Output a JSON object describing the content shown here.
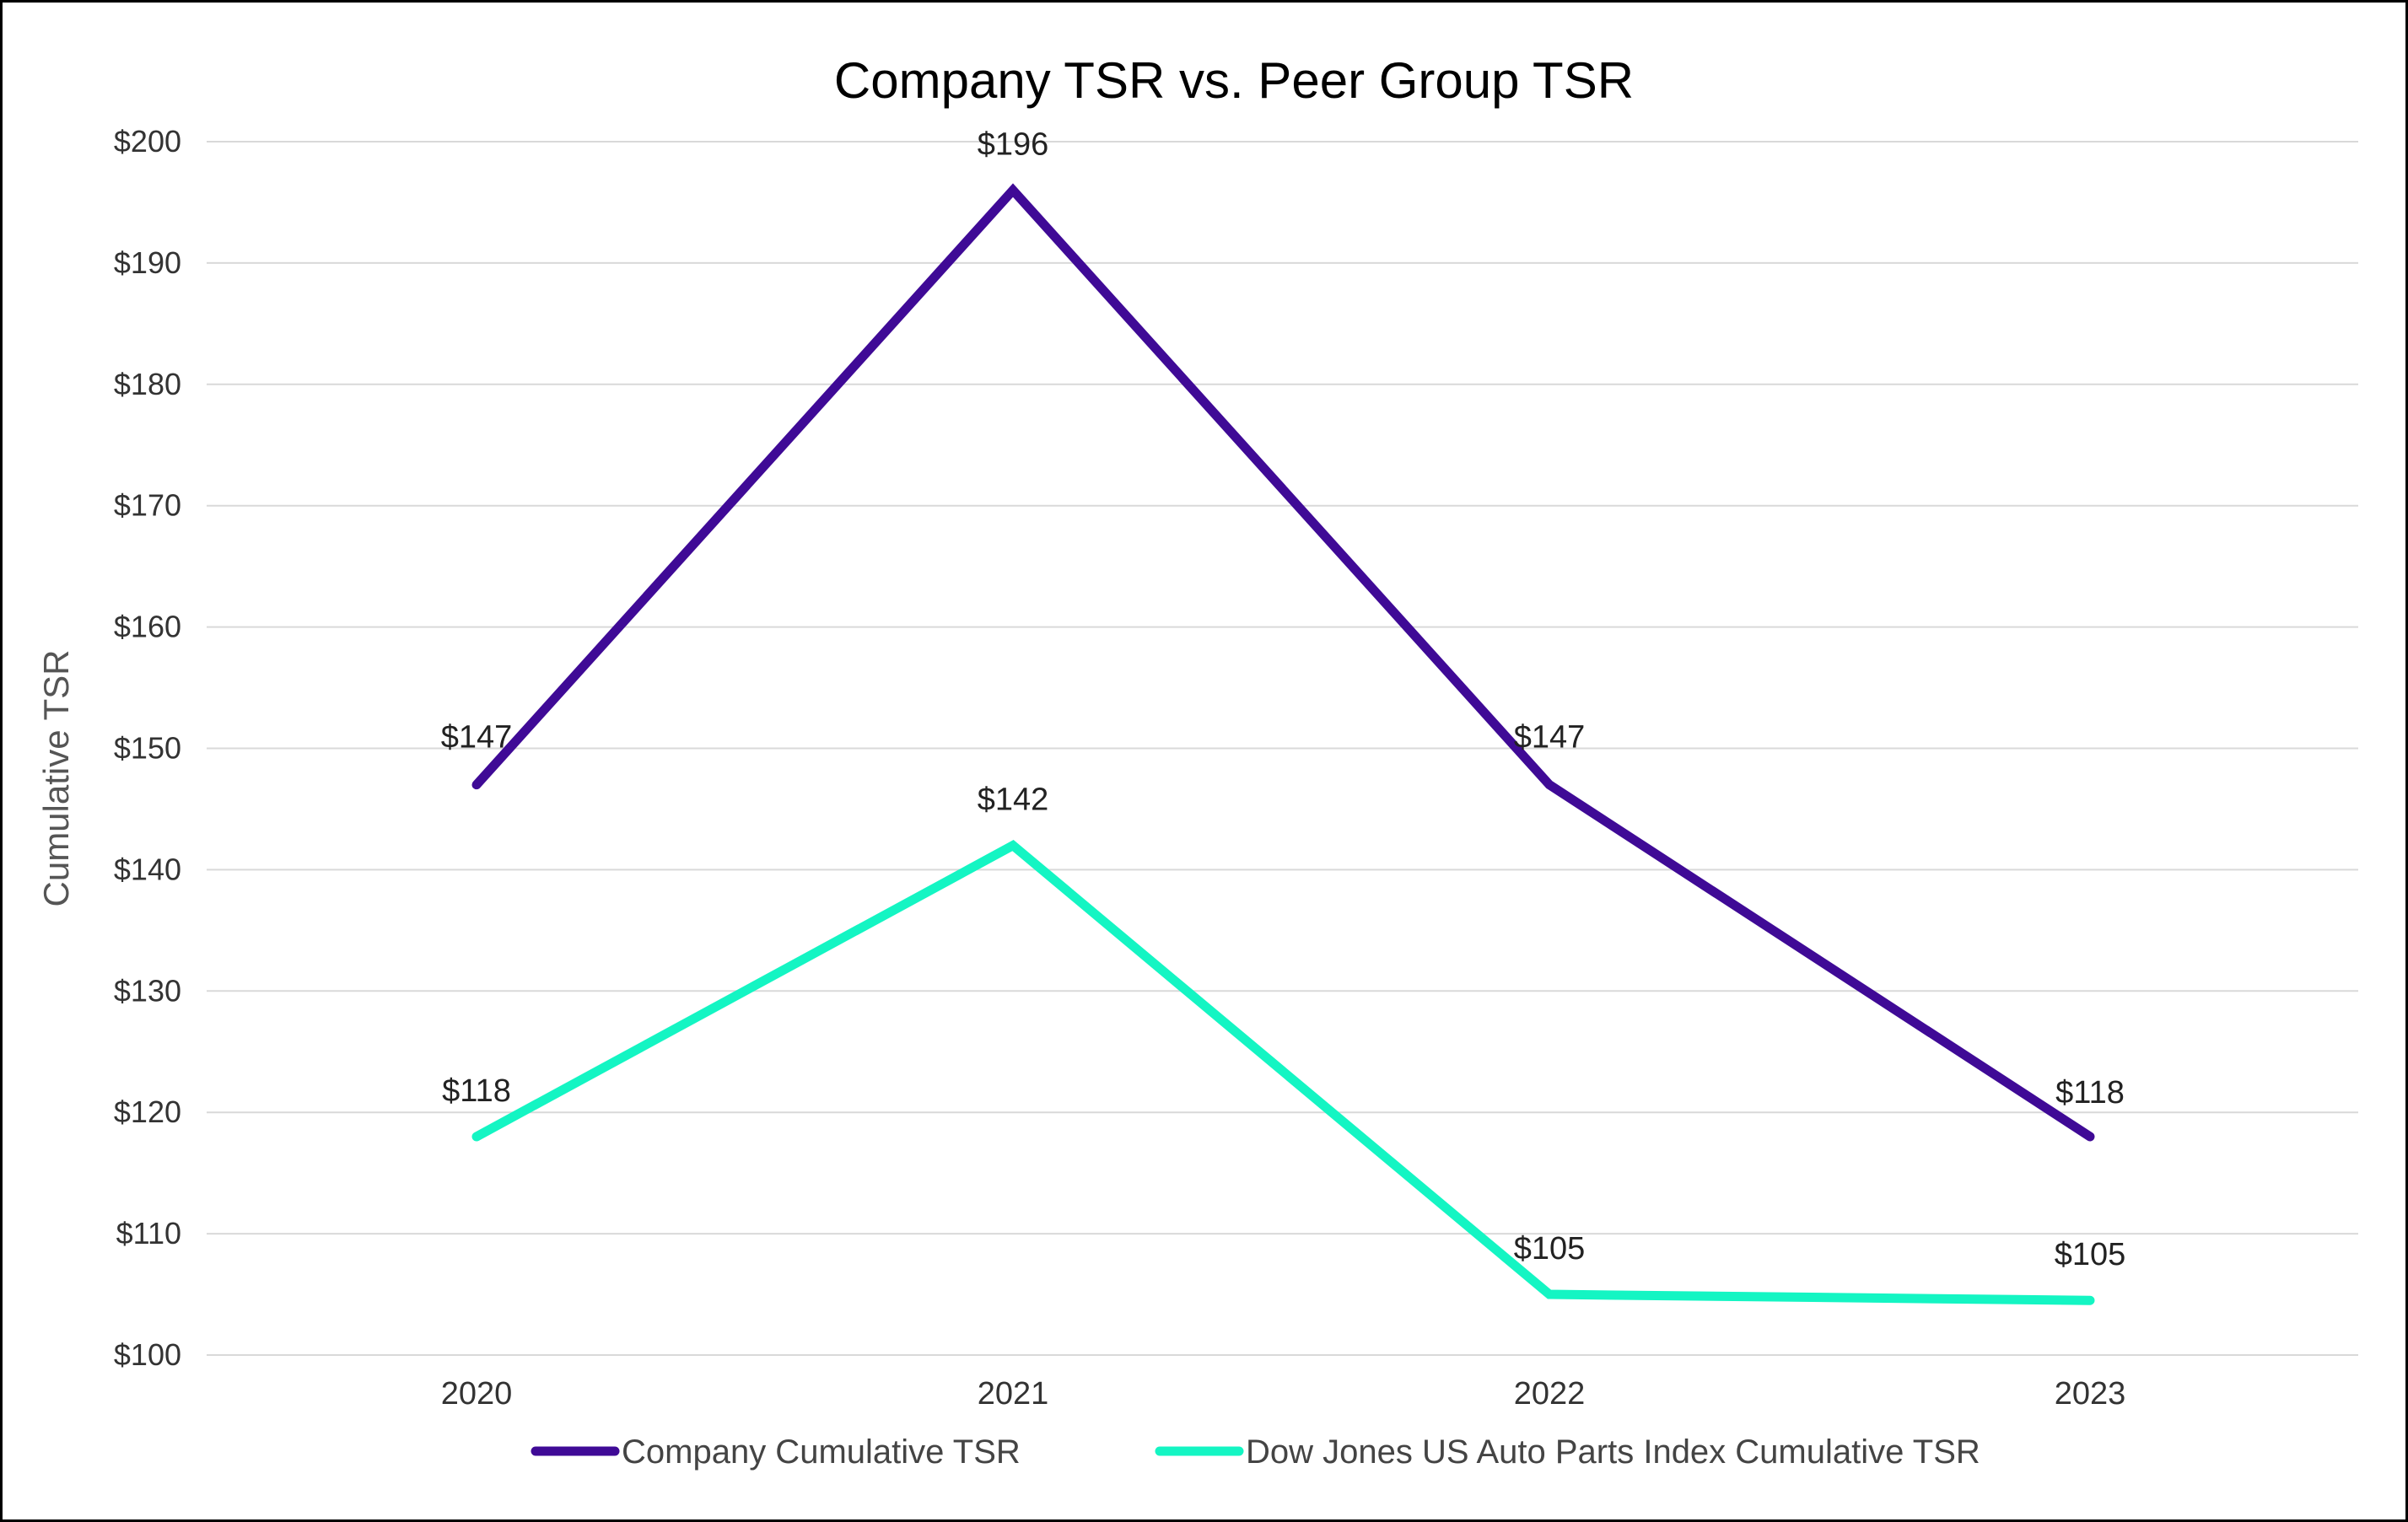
{
  "chart_data": {
    "type": "line",
    "title": "Company TSR vs. Peer Group TSR",
    "xlabel": "",
    "ylabel": "Cumulative TSR",
    "categories": [
      "2020",
      "2021",
      "2022",
      "2023"
    ],
    "ylim": [
      100,
      200
    ],
    "ytick_values": [
      100,
      110,
      120,
      130,
      140,
      150,
      160,
      170,
      180,
      190,
      200
    ],
    "ytick_labels": [
      "$100",
      "$110",
      "$120",
      "$130",
      "$140",
      "$150",
      "$160",
      "$170",
      "$180",
      "$190",
      "$200"
    ],
    "grid": true,
    "legend_position": "bottom",
    "series": [
      {
        "name": "Company Cumulative TSR",
        "color": "#3f0a96",
        "values": [
          147,
          196,
          147,
          118
        ],
        "labels": [
          "$147",
          "$196",
          "$147",
          "$118"
        ]
      },
      {
        "name": "Dow Jones US Auto Parts Index Cumulative TSR",
        "color": "#14f5c3",
        "values": [
          118,
          142,
          105,
          104.5
        ],
        "labels": [
          "$118",
          "$142",
          "$105",
          "$105"
        ]
      }
    ]
  }
}
